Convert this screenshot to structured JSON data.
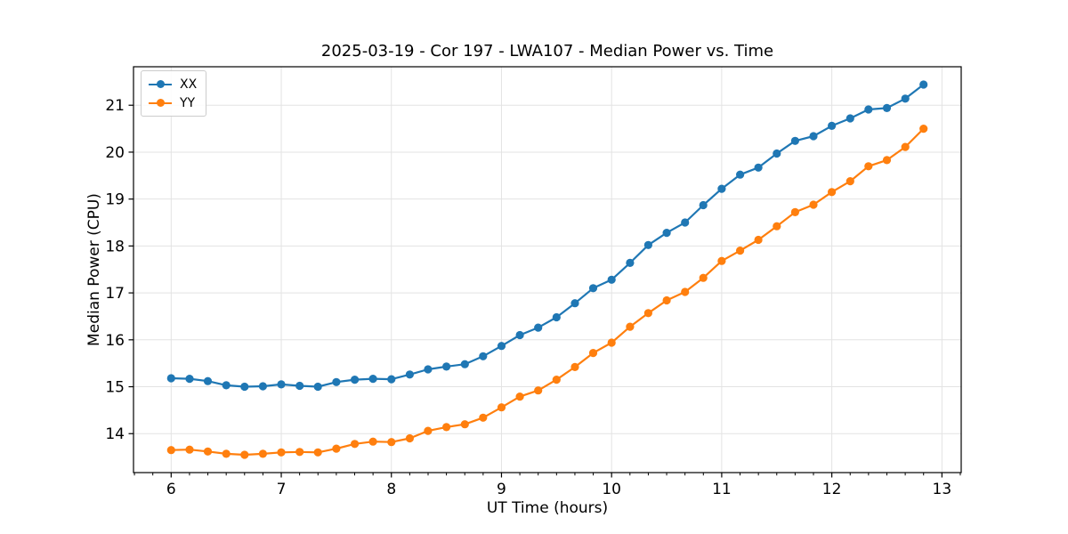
{
  "chart_data": {
    "type": "line",
    "title": "2025-03-19 - Cor 197 - LWA107 - Median Power vs. Time",
    "xlabel": "UT Time (hours)",
    "ylabel": "Median Power (CPU)",
    "x": [
      6.0,
      6.167,
      6.333,
      6.5,
      6.667,
      6.833,
      7.0,
      7.167,
      7.333,
      7.5,
      7.667,
      7.833,
      8.0,
      8.167,
      8.333,
      8.5,
      8.667,
      8.833,
      9.0,
      9.167,
      9.333,
      9.5,
      9.667,
      9.833,
      10.0,
      10.167,
      10.333,
      10.5,
      10.667,
      10.833,
      11.0,
      11.167,
      11.333,
      11.5,
      11.667,
      11.833,
      12.0,
      12.167,
      12.333,
      12.5,
      12.667,
      12.833
    ],
    "series": [
      {
        "name": "XX",
        "color": "#1f77b4",
        "values": [
          15.18,
          15.17,
          15.12,
          15.03,
          15.0,
          15.01,
          15.05,
          15.02,
          15.0,
          15.1,
          15.15,
          15.17,
          15.16,
          15.26,
          15.37,
          15.43,
          15.48,
          15.65,
          15.87,
          16.1,
          16.26,
          16.48,
          16.78,
          17.1,
          17.28,
          17.64,
          18.02,
          18.28,
          18.5,
          18.87,
          19.22,
          19.52,
          19.67,
          19.97,
          20.24,
          20.34,
          20.56,
          20.72,
          20.91,
          20.94,
          21.14,
          21.44
        ]
      },
      {
        "name": "YY",
        "color": "#ff7f0e",
        "values": [
          13.65,
          13.66,
          13.62,
          13.57,
          13.55,
          13.57,
          13.6,
          13.61,
          13.6,
          13.68,
          13.78,
          13.83,
          13.82,
          13.9,
          14.06,
          14.14,
          14.2,
          14.34,
          14.56,
          14.79,
          14.92,
          15.15,
          15.42,
          15.72,
          15.94,
          16.28,
          16.57,
          16.84,
          17.02,
          17.32,
          17.68,
          17.9,
          18.13,
          18.42,
          18.72,
          18.88,
          19.15,
          19.38,
          19.7,
          19.83,
          20.11,
          20.5
        ]
      }
    ],
    "xlim": [
      5.658,
      13.175
    ],
    "ylim": [
      13.17,
      21.82
    ],
    "xticks": [
      6,
      7,
      8,
      9,
      10,
      11,
      12,
      13
    ],
    "yticks": [
      14,
      15,
      16,
      17,
      18,
      19,
      20,
      21
    ],
    "minor_xtick_step": 0.1667,
    "grid": true,
    "grid_color": "#e3e3e3",
    "axis_color": "#000000",
    "legend_position": "upper left",
    "marker": "circle"
  }
}
